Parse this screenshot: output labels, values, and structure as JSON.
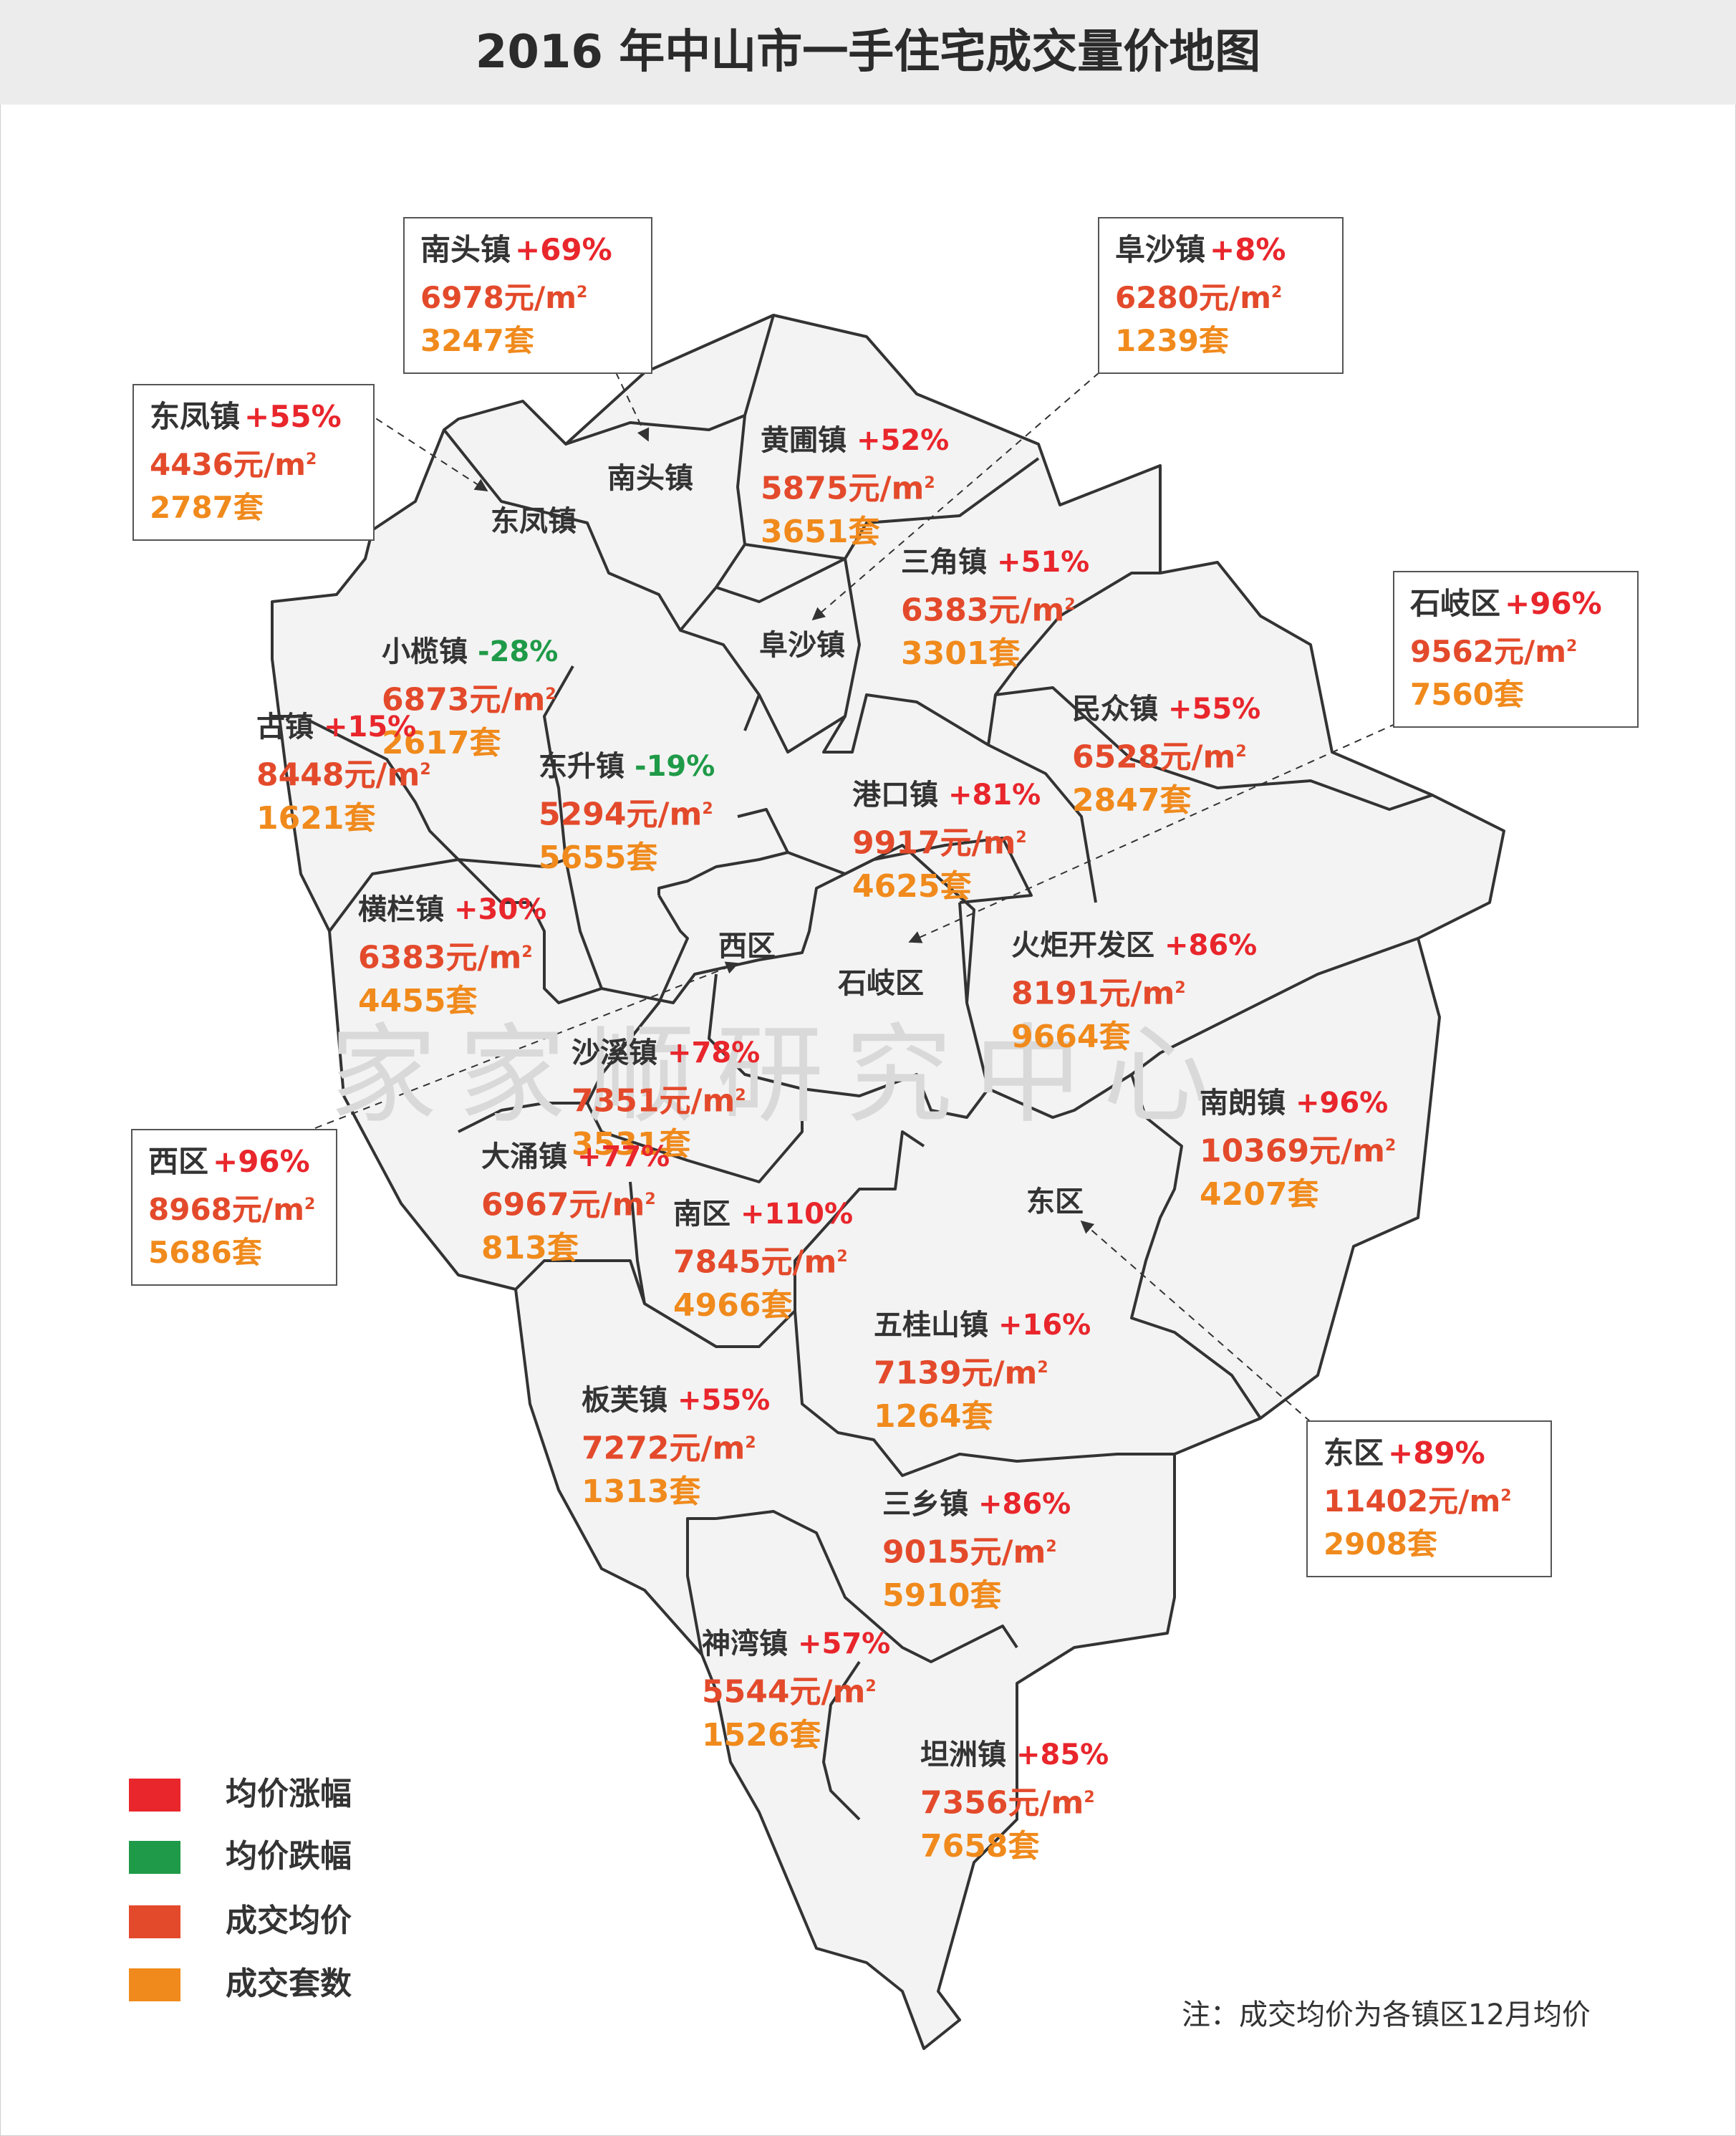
{
  "title": "2016 年中山市一手住宅成交量价地图",
  "watermark": "家家顺研究中心",
  "unit_price": "元/m",
  "unit_sq": "2",
  "unit_count": "套",
  "colors": {
    "rise": "#e8262c",
    "fall": "#1f9a48",
    "price": "#e34a2b",
    "count": "#f08a1c"
  },
  "towns": [
    {
      "name": "黄圃镇",
      "change": "+52%",
      "price": "5875",
      "count": "3651"
    },
    {
      "name": "三角镇",
      "change": "+51%",
      "price": "6383",
      "count": "3301"
    },
    {
      "name": "小榄镇",
      "change": "-28%",
      "price": "6873",
      "count": "2617"
    },
    {
      "name": "古镇",
      "change": "+15%",
      "price": "8448",
      "count": "1621"
    },
    {
      "name": "东升镇",
      "change": "-19%",
      "price": "5294",
      "count": "5655"
    },
    {
      "name": "港口镇",
      "change": "+81%",
      "price": "9917",
      "count": "4625"
    },
    {
      "name": "民众镇",
      "change": "+55%",
      "price": "6528",
      "count": "2847"
    },
    {
      "name": "横栏镇",
      "change": "+30%",
      "price": "6383",
      "count": "4455"
    },
    {
      "name": "火炬开发区",
      "change": "+86%",
      "price": "8191",
      "count": "9664"
    },
    {
      "name": "沙溪镇",
      "change": "+78%",
      "price": "7351",
      "count": "3531"
    },
    {
      "name": "南朗镇",
      "change": "+96%",
      "price": "10369",
      "count": "4207"
    },
    {
      "name": "大涌镇",
      "change": "+77%",
      "price": "6967",
      "count": "813"
    },
    {
      "name": "南区",
      "change": "+110%",
      "price": "7845",
      "count": "4966"
    },
    {
      "name": "五桂山镇",
      "change": "+16%",
      "price": "7139",
      "count": "1264"
    },
    {
      "name": "板芙镇",
      "change": "+55%",
      "price": "7272",
      "count": "1313"
    },
    {
      "name": "三乡镇",
      "change": "+86%",
      "price": "9015",
      "count": "5910"
    },
    {
      "name": "神湾镇",
      "change": "+57%",
      "price": "5544",
      "count": "1526"
    },
    {
      "name": "坦洲镇",
      "change": "+85%",
      "price": "7356",
      "count": "7658"
    }
  ],
  "callouts": [
    {
      "name": "南头镇",
      "change": "+69%",
      "price": "6978",
      "count": "3247"
    },
    {
      "name": "阜沙镇",
      "change": "+8%",
      "price": "6280",
      "count": "1239"
    },
    {
      "name": "东凤镇",
      "change": "+55%",
      "price": "4436",
      "count": "2787"
    },
    {
      "name": "石岐区",
      "change": "+96%",
      "price": "9562",
      "count": "7560"
    },
    {
      "name": "西区",
      "change": "+96%",
      "price": "8968",
      "count": "5686"
    },
    {
      "name": "东区",
      "change": "+89%",
      "price": "11402",
      "count": "2908"
    }
  ],
  "map_names": [
    "南头镇",
    "东凤镇",
    "阜沙镇",
    "西区",
    "石岐区",
    "东区"
  ],
  "legend": [
    {
      "label": "均价涨幅",
      "color": "#e8262c"
    },
    {
      "label": "均价跌幅",
      "color": "#1f9a48"
    },
    {
      "label": "成交均价",
      "color": "#e34a2b"
    },
    {
      "label": "成交套数",
      "color": "#f08a1c"
    }
  ],
  "note": "注：成交均价为各镇区12月均价"
}
